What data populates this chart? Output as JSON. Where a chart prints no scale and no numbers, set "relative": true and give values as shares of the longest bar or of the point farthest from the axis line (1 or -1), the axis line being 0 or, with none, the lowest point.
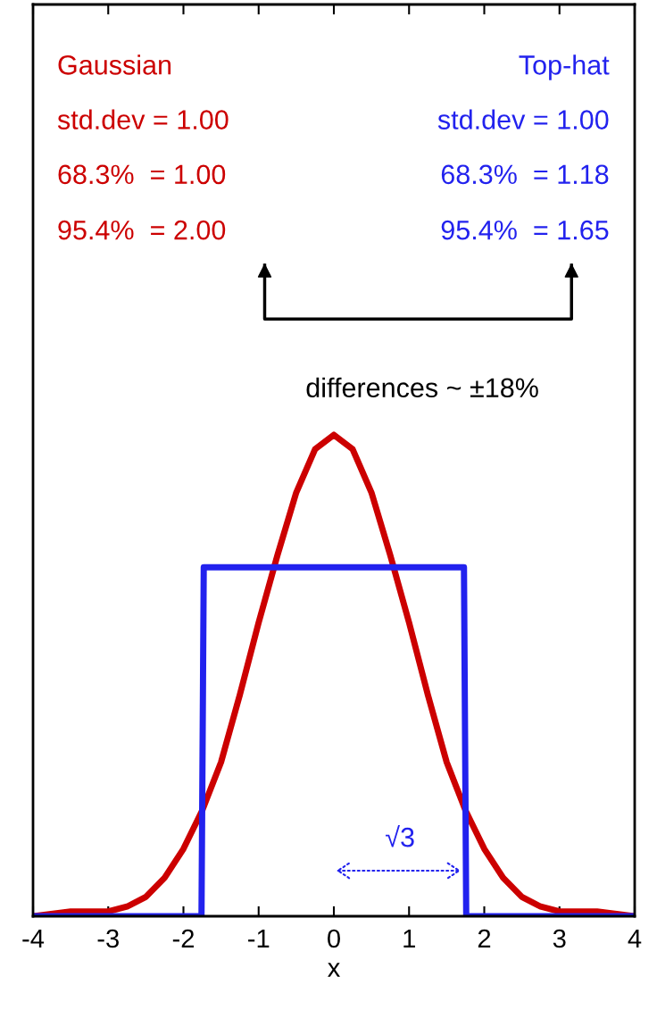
{
  "chart_data": {
    "type": "line",
    "relative": true,
    "xlabel": "x",
    "xlim": [
      -4,
      4
    ],
    "xticks": [
      -4,
      -3,
      -2,
      -1,
      0,
      1,
      2,
      3,
      4
    ],
    "legend": "top",
    "grid": false,
    "series": [
      {
        "name": "Gaussian",
        "color": "#cc0000",
        "x": [
          -4,
          -3.5,
          -3,
          -2.75,
          -2.5,
          -2.25,
          -2,
          -1.75,
          -1.5,
          -1.25,
          -1,
          -0.75,
          -0.5,
          -0.25,
          0,
          0.25,
          0.5,
          0.75,
          1,
          1.25,
          1.5,
          1.75,
          2,
          2.25,
          2.5,
          2.75,
          3,
          3.5,
          4
        ],
        "values": [
          0.0,
          0.01,
          0.01,
          0.02,
          0.04,
          0.08,
          0.14,
          0.22,
          0.32,
          0.46,
          0.61,
          0.75,
          0.88,
          0.97,
          1.0,
          0.97,
          0.88,
          0.75,
          0.61,
          0.46,
          0.32,
          0.22,
          0.14,
          0.08,
          0.04,
          0.02,
          0.01,
          0.01,
          0.0
        ]
      },
      {
        "name": "Top-hat",
        "color": "#2222ee",
        "x": [
          -4,
          -1.76,
          -1.73,
          1.73,
          1.76,
          4
        ],
        "values": [
          0,
          0,
          0.725,
          0.725,
          0,
          0
        ]
      }
    ],
    "annotations": [
      "std.dev = 1.00",
      "68.3%  = 1.00",
      "95.4%  = 2.00",
      "std.dev = 1.00",
      "68.3%  = 1.18",
      "95.4%  = 1.65",
      "differences ~ ±18%",
      "√3"
    ]
  }
}
